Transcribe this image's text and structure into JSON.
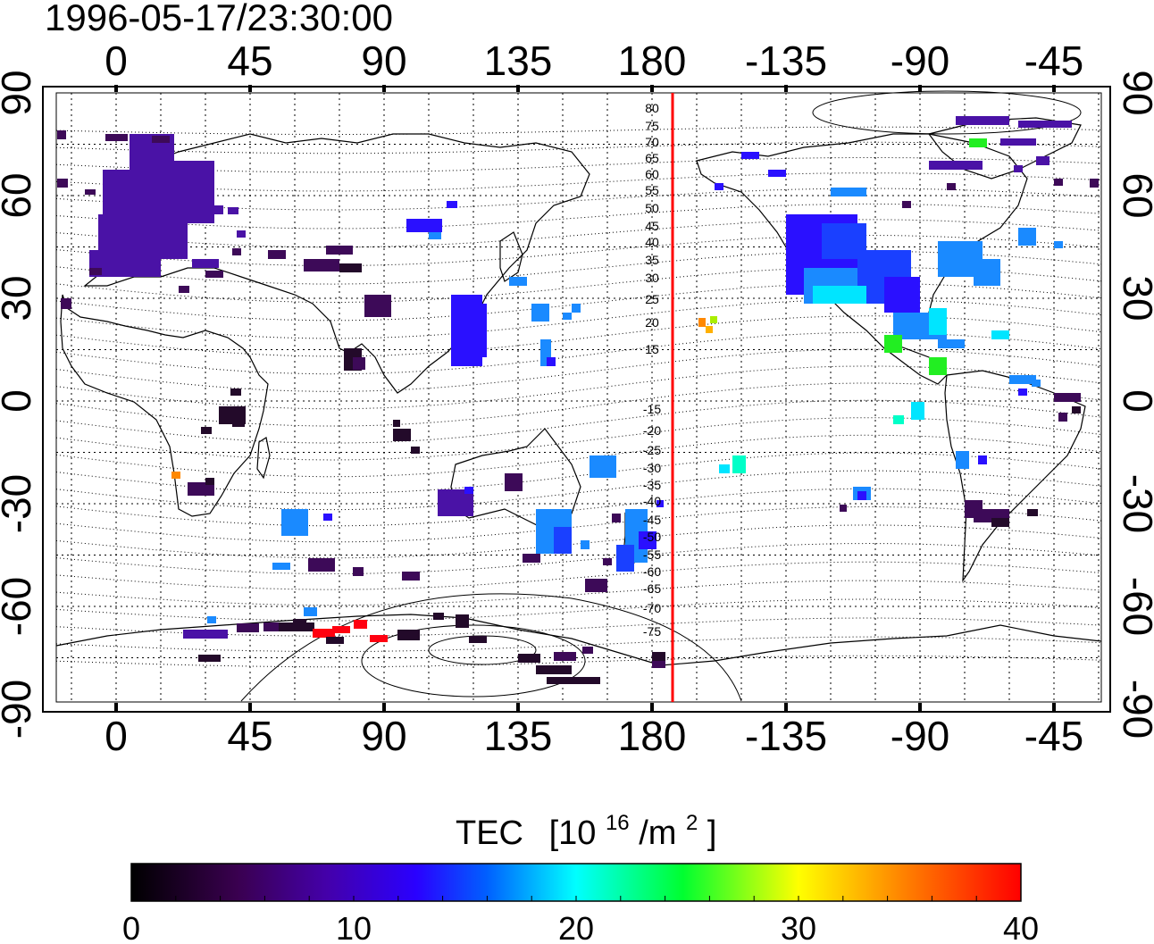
{
  "timestamp": "1996-05-17/23:30:00",
  "top_longitude_ticks": [
    "0",
    "45",
    "90",
    "135",
    "180",
    "-135",
    "-90",
    "-45"
  ],
  "bottom_longitude_ticks": [
    "0",
    "45",
    "90",
    "135",
    "180",
    "-135",
    "-90",
    "-45"
  ],
  "latitude_ticks": [
    "90",
    "60",
    "30",
    "0",
    "-30",
    "-60",
    "-90"
  ],
  "contour_labels": [
    "80",
    "75",
    "70",
    "65",
    "60",
    "55",
    "50",
    "45",
    "40",
    "35",
    "30",
    "25",
    "20",
    "15",
    "-15",
    "-20",
    "-25",
    "-30",
    "-35",
    "-40",
    "-45",
    "-50",
    "-55",
    "-60",
    "-65",
    "-70",
    "-75"
  ],
  "colorbar": {
    "title": "TEC",
    "unit_base": "[10",
    "unit_exp": "16",
    "unit_mid": "/m",
    "unit_exp2": "2",
    "unit_end": "]",
    "ticks": [
      "0",
      "10",
      "20",
      "30",
      "40"
    ],
    "range": [
      0,
      40
    ]
  },
  "colors": {
    "terminator_line": "#ff0000",
    "frame": "#000000",
    "grid": "#000000"
  }
}
